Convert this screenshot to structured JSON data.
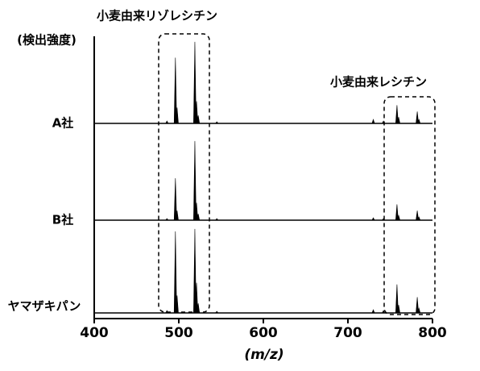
{
  "chart_data": {
    "type": "spectrum",
    "annotations": [
      "小麦由来リゾレシチン",
      "小麦由来レシチン"
    ],
    "ylabel": "(検出強度)",
    "xlabel": "(m/z)",
    "xlim": [
      400,
      800
    ],
    "xticks": [
      400,
      500,
      600,
      700,
      800
    ],
    "ylim": [
      0,
      110
    ],
    "x": [
      486,
      496,
      498,
      519,
      521,
      523,
      545,
      730,
      742,
      758,
      760,
      782,
      784
    ],
    "series": [
      {
        "name": "A社",
        "color": "#000000",
        "values": [
          3,
          83,
          20,
          103,
          28,
          10,
          2,
          5,
          3,
          23,
          8,
          15,
          5
        ]
      },
      {
        "name": "B社",
        "color": "#000000",
        "values": [
          2,
          53,
          12,
          100,
          22,
          8,
          2,
          3,
          2,
          20,
          6,
          12,
          4
        ]
      },
      {
        "name": "ヤマザキパン",
        "color": "#000000",
        "values": [
          3,
          103,
          22,
          106,
          38,
          12,
          2,
          4,
          3,
          36,
          10,
          20,
          6
        ]
      }
    ]
  }
}
